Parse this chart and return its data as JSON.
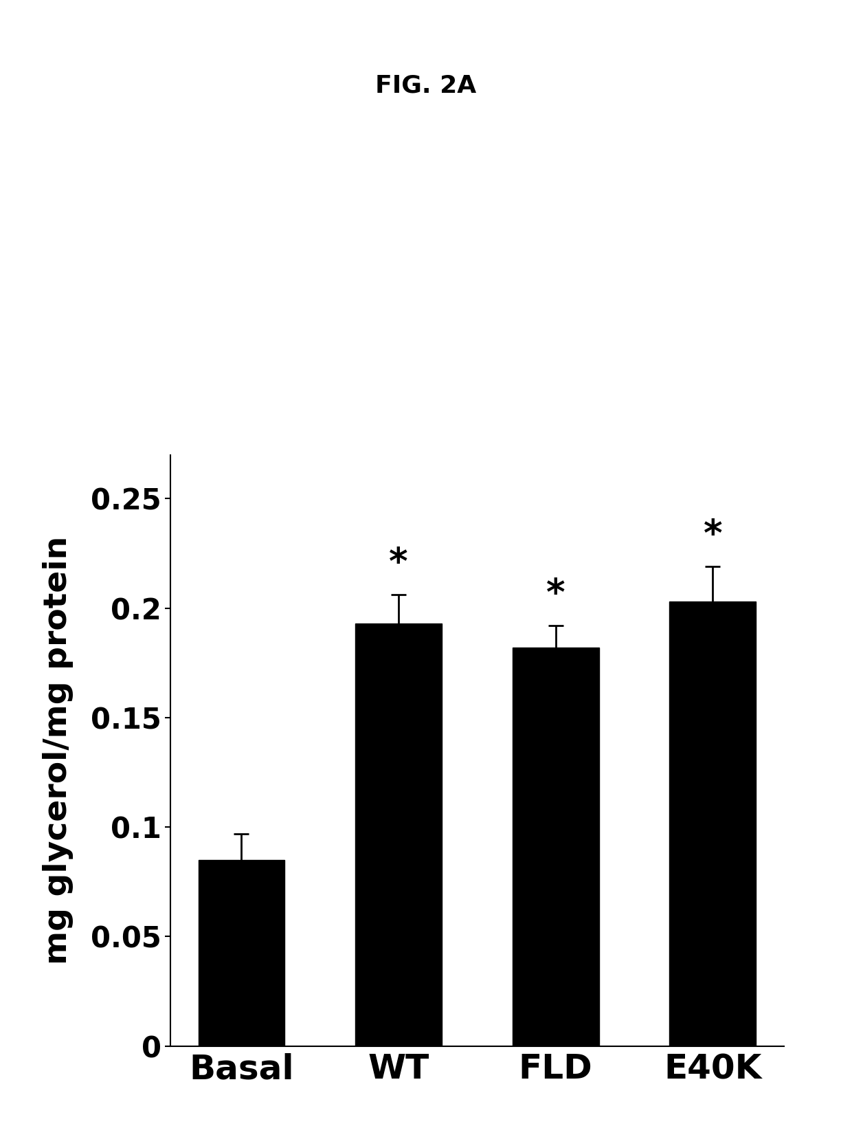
{
  "title": "FIG. 2A",
  "categories": [
    "Basal",
    "WT",
    "FLD",
    "E40K"
  ],
  "values": [
    0.085,
    0.193,
    0.182,
    0.203
  ],
  "errors": [
    0.012,
    0.013,
    0.01,
    0.016
  ],
  "bar_color": "#000000",
  "bar_width": 0.55,
  "ylabel": "mg glycerol/mg protein",
  "ylim": [
    0,
    0.27
  ],
  "yticks": [
    0,
    0.05,
    0.1,
    0.15,
    0.2,
    0.25
  ],
  "significance": [
    false,
    true,
    true,
    true
  ],
  "figsize": [
    12.4,
    16.54
  ],
  "dpi": 100,
  "background_color": "#ffffff",
  "title_fontsize": 26,
  "label_fontsize": 34,
  "tick_fontsize": 30,
  "xtick_fontsize": 36,
  "star_fontsize": 38
}
